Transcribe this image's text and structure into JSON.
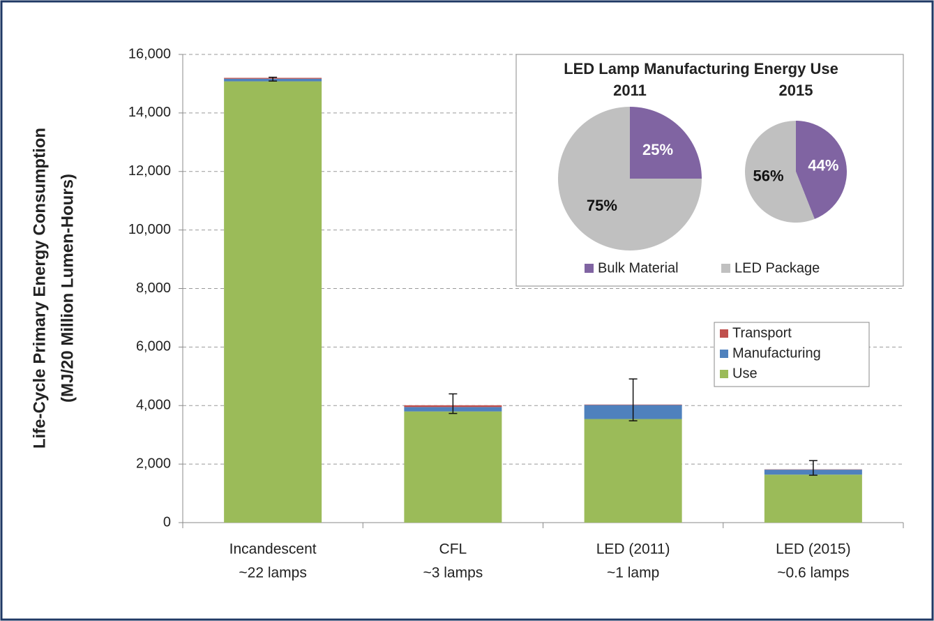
{
  "chart_data": [
    {
      "type": "bar",
      "stacked": true,
      "ylabel": [
        "Life-Cycle Primary Energy Consumption",
        "(MJ/20 Million Lumen-Hours)"
      ],
      "categories": [
        [
          "Incandescent",
          "~22 lamps"
        ],
        [
          "CFL",
          "~3 lamps"
        ],
        [
          "LED (2011)",
          "~1 lamp"
        ],
        [
          "LED (2015)",
          "~0.6 lamps"
        ]
      ],
      "series": [
        {
          "name": "Use",
          "color": "#9bbb59",
          "values": [
            15080,
            3800,
            3540,
            1640
          ]
        },
        {
          "name": "Manufacturing",
          "color": "#4f81bd",
          "values": [
            90,
            150,
            480,
            170
          ]
        },
        {
          "name": "Transport",
          "color": "#c0504d",
          "values": [
            30,
            60,
            15,
            10
          ]
        }
      ],
      "error_low": [
        15090,
        3730,
        3480,
        1620
      ],
      "error_high": [
        15220,
        4400,
        4910,
        2120
      ],
      "ylim": [
        0,
        16000
      ],
      "yticks": [
        0,
        {
          "value": 2000,
          "label": "2,000"
        },
        {
          "value": 4000,
          "label": "4,000"
        },
        {
          "value": 6000,
          "label": "6,000"
        },
        {
          "value": 8000,
          "label": "8,000"
        },
        {
          "value": 10000,
          "label": "10,000"
        },
        {
          "value": 12000,
          "label": "12,000"
        },
        {
          "value": 14000,
          "label": "14,000"
        },
        {
          "value": 16000,
          "label": "16,000"
        }
      ],
      "grid": true,
      "legend": "right"
    },
    {
      "type": "pie",
      "title": "LED Lamp Manufacturing Energy Use",
      "categories": [
        "Bulk Material",
        "LED Package"
      ],
      "colors": [
        "#8064a2",
        "#c0c0c0"
      ],
      "pies": [
        {
          "label": "2011",
          "values": [
            25,
            75
          ],
          "value_labels": [
            "25%",
            "75%"
          ]
        },
        {
          "label": "2015",
          "values": [
            44,
            56
          ],
          "value_labels": [
            "44%",
            "56%"
          ]
        }
      ]
    }
  ]
}
